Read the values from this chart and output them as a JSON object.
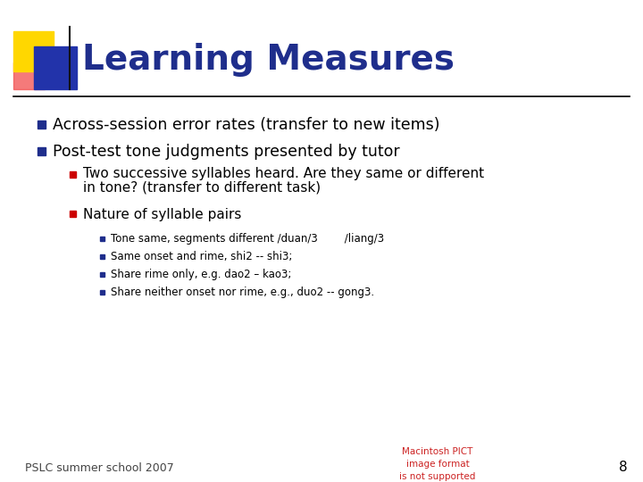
{
  "title": "Learning Measures",
  "title_color": "#1F2E8C",
  "title_fontsize": 28,
  "background_color": "#FFFFFF",
  "bullet1": "Across-session error rates (transfer to new items)",
  "bullet2": "Post-test tone judgments presented by tutor",
  "sub_bullet1_line1": "Two successive syllables heard. Are they same or different",
  "sub_bullet1_line2": "in tone? (transfer to different task)",
  "sub_bullet2": "Nature of syllable pairs",
  "sub_sub_bullets": [
    "Tone same, segments different /duan/3        /liang/3",
    "Same onset and rime, shi2 -- shi3;",
    "Share rime only, e.g. dao2 – kao3;",
    "Share neither onset nor rime, e.g., duo2 -- gong3."
  ],
  "footer": "PSLC summer school 2007",
  "footer_color": "#444444",
  "page_num": "8",
  "bullet_color": "#1F2E8C",
  "sub_bullet_color": "#CC0000",
  "sub_sub_bullet_color": "#1F2E8C",
  "body_text_color": "#000000",
  "header_line_color": "#000000",
  "logo_yellow": "#FFD700",
  "logo_blue": "#2233AA",
  "logo_red_r": 0.95,
  "logo_red_g": 0.3,
  "logo_red_b": 0.3,
  "macintosh_text": "Macintosh PICT\nimage format\nis not supported",
  "macintosh_color": "#CC2222"
}
